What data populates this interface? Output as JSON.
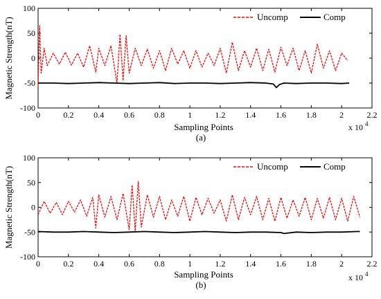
{
  "chart_data": [
    {
      "type": "line",
      "panel_label": "(a)",
      "xlabel": "Sampling Points",
      "ylabel": "Magnetic Strength(nT)",
      "x_scale_label": "x 10",
      "x_scale_exp": "4",
      "xlim": [
        0,
        2.2
      ],
      "ylim": [
        -100,
        100
      ],
      "xticks": [
        "0",
        "0.2",
        "0.4",
        "0.6",
        "0.8",
        "1",
        "1.2",
        "1.4",
        "1.6",
        "1.8",
        "2",
        "2.2"
      ],
      "yticks": [
        "-100",
        "-50",
        "0",
        "50",
        "100"
      ],
      "legend_position": "top-right",
      "series": [
        {
          "name": "Uncomp",
          "color": "#ff0000",
          "style": "dashed",
          "x": [
            0,
            0.01,
            0.02,
            0.04,
            0.06,
            0.1,
            0.14,
            0.18,
            0.22,
            0.26,
            0.3,
            0.34,
            0.38,
            0.4,
            0.44,
            0.48,
            0.52,
            0.54,
            0.56,
            0.58,
            0.6,
            0.64,
            0.68,
            0.72,
            0.76,
            0.8,
            0.84,
            0.88,
            0.92,
            0.96,
            1.0,
            1.04,
            1.08,
            1.12,
            1.16,
            1.2,
            1.24,
            1.28,
            1.32,
            1.36,
            1.4,
            1.44,
            1.48,
            1.52,
            1.56,
            1.6,
            1.64,
            1.68,
            1.72,
            1.76,
            1.8,
            1.84,
            1.88,
            1.92,
            1.96,
            2.0,
            2.04
          ],
          "y": [
            -55,
            65,
            -30,
            20,
            -15,
            10,
            -12,
            12,
            -14,
            10,
            -18,
            25,
            -28,
            20,
            -15,
            25,
            -50,
            48,
            -45,
            45,
            -30,
            20,
            -15,
            18,
            -20,
            15,
            -25,
            20,
            -12,
            15,
            -20,
            15,
            -18,
            10,
            -15,
            20,
            -30,
            32,
            -25,
            15,
            -18,
            20,
            -25,
            18,
            -28,
            22,
            -15,
            20,
            -25,
            15,
            -30,
            28,
            -20,
            15,
            -25,
            10,
            -5
          ]
        },
        {
          "name": "Comp",
          "color": "#000000",
          "style": "solid",
          "x": [
            0,
            0.1,
            0.2,
            0.3,
            0.4,
            0.5,
            0.6,
            0.7,
            0.8,
            0.9,
            1.0,
            1.1,
            1.2,
            1.3,
            1.4,
            1.5,
            1.55,
            1.57,
            1.59,
            1.62,
            1.7,
            1.8,
            1.9,
            2.0,
            2.05
          ],
          "y": [
            -50,
            -50,
            -51,
            -50,
            -49,
            -50,
            -51,
            -50,
            -49,
            -51,
            -50,
            -50,
            -51,
            -50,
            -49,
            -50,
            -52,
            -59,
            -53,
            -50,
            -51,
            -50,
            -50,
            -51,
            -50
          ]
        }
      ]
    },
    {
      "type": "line",
      "panel_label": "(b)",
      "xlabel": "Sampling Points",
      "ylabel": "Magnetic Strength(nT)",
      "x_scale_label": "x 10",
      "x_scale_exp": "4",
      "xlim": [
        0,
        2.2
      ],
      "ylim": [
        -100,
        100
      ],
      "xticks": [
        "0",
        "0.2",
        "0.4",
        "0.6",
        "0.8",
        "1",
        "1.2",
        "1.4",
        "1.6",
        "1.8",
        "2",
        "2.2"
      ],
      "yticks": [
        "-100",
        "-50",
        "0",
        "50",
        "100"
      ],
      "legend_position": "top-right",
      "series": [
        {
          "name": "Uncomp",
          "color": "#ff0000",
          "style": "dashed",
          "x": [
            0,
            0.04,
            0.08,
            0.12,
            0.16,
            0.2,
            0.24,
            0.28,
            0.32,
            0.36,
            0.38,
            0.4,
            0.44,
            0.48,
            0.52,
            0.56,
            0.6,
            0.62,
            0.64,
            0.66,
            0.68,
            0.72,
            0.76,
            0.8,
            0.84,
            0.88,
            0.92,
            0.96,
            1.0,
            1.04,
            1.08,
            1.12,
            1.16,
            1.2,
            1.24,
            1.28,
            1.32,
            1.36,
            1.4,
            1.44,
            1.48,
            1.52,
            1.56,
            1.6,
            1.64,
            1.68,
            1.72,
            1.76,
            1.8,
            1.84,
            1.88,
            1.92,
            1.96,
            2.0,
            2.04,
            2.08,
            2.12
          ],
          "y": [
            -15,
            12,
            -12,
            10,
            -15,
            12,
            -10,
            15,
            -18,
            20,
            -42,
            25,
            -20,
            22,
            -25,
            28,
            -45,
            45,
            -48,
            52,
            -40,
            25,
            -20,
            22,
            -25,
            15,
            -18,
            22,
            -28,
            20,
            -15,
            18,
            -12,
            15,
            -28,
            25,
            -25,
            20,
            -15,
            22,
            -25,
            18,
            -28,
            20,
            -22,
            15,
            -18,
            20,
            -25,
            18,
            -22,
            20,
            -25,
            18,
            -28,
            22,
            -20
          ]
        },
        {
          "name": "Comp",
          "color": "#000000",
          "style": "solid",
          "x": [
            0,
            0.1,
            0.2,
            0.3,
            0.4,
            0.5,
            0.6,
            0.7,
            0.8,
            0.9,
            1.0,
            1.1,
            1.2,
            1.3,
            1.4,
            1.5,
            1.6,
            1.62,
            1.7,
            1.8,
            1.9,
            2.0,
            2.1,
            2.12
          ],
          "y": [
            -49,
            -50,
            -50,
            -49,
            -50,
            -51,
            -50,
            -49,
            -50,
            -51,
            -50,
            -49,
            -50,
            -51,
            -50,
            -50,
            -51,
            -53,
            -50,
            -51,
            -50,
            -50,
            -49,
            -49
          ]
        }
      ]
    }
  ]
}
